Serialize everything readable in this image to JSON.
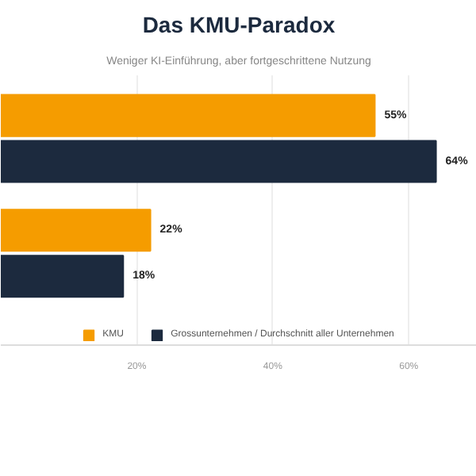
{
  "chart_data": {
    "type": "bar",
    "orientation": "horizontal",
    "title": "Das KMU-Paradox",
    "subtitle": "Weniger KI-Einführung, aber fortgeschrittene Nutzung",
    "categories": [
      null,
      null
    ],
    "series": [
      {
        "name": "KMU",
        "color": "#f59c00",
        "values": [
          55,
          22
        ]
      },
      {
        "name": "Grossunternehmen / Durchschnitt aller Unternehmen",
        "color": "#1c2a3e",
        "values": [
          64,
          18
        ]
      }
    ],
    "xlim": [
      0,
      70
    ],
    "xticks": [
      {
        "value": 20,
        "label": "20%"
      },
      {
        "value": 40,
        "label": "40%"
      },
      {
        "value": 60,
        "label": "60%"
      }
    ],
    "value_labels": [
      [
        "55%",
        "22%"
      ],
      [
        "64%",
        "18%"
      ]
    ],
    "grid": "x",
    "legend": "bottom"
  }
}
